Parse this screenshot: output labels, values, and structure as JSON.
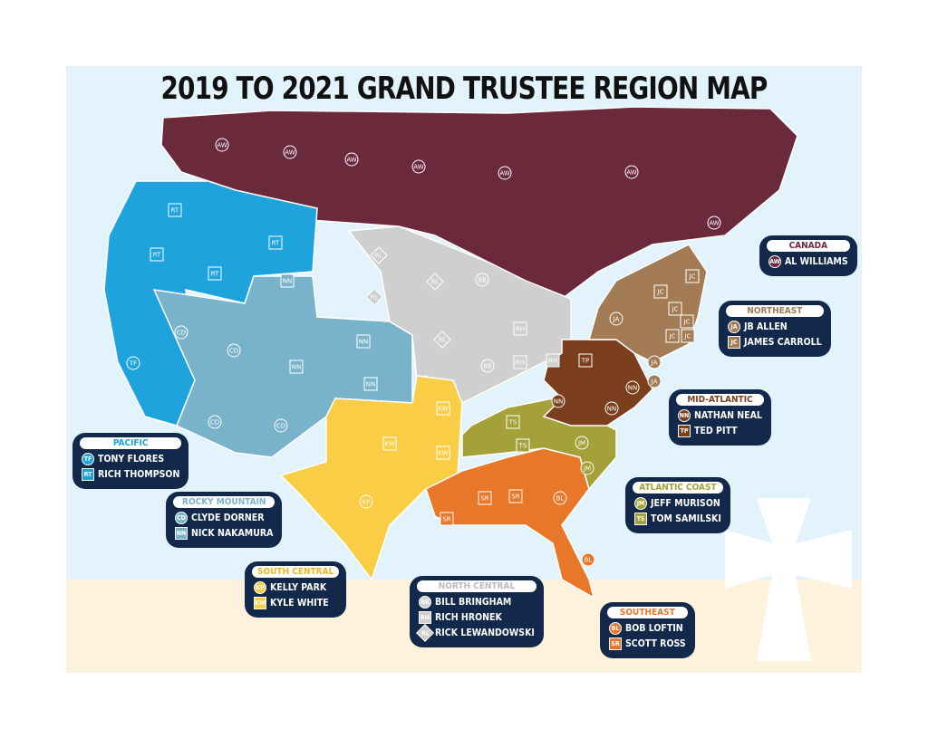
{
  "title": "2019 TO 2021 GRAND TRUSTEE REGION MAP",
  "colors": {
    "canada": "#6b2a3c",
    "northeast": "#a37c55",
    "mid_atlantic": "#7b3f1d",
    "atlantic_coast": "#a5a13a",
    "southeast": "#e8772a",
    "south_central": "#f9cd45",
    "north_central": "#cfcfcf",
    "rocky_mountain": "#79b3cb",
    "pacific": "#1fa3dd",
    "legend_bg": "#13294b",
    "ocean": "#e3f3fb",
    "land_bg": "#fdf3dc"
  },
  "legends": {
    "canada": {
      "title": "CANADA",
      "members": [
        {
          "code": "AW",
          "name": "AL WILLIAMS",
          "shape": "circle"
        }
      ]
    },
    "northeast": {
      "title": "NORTHEAST",
      "members": [
        {
          "code": "JA",
          "name": "JB ALLEN",
          "shape": "circle"
        },
        {
          "code": "JC",
          "name": "JAMES CARROLL",
          "shape": "square"
        }
      ]
    },
    "mid_atlantic": {
      "title": "MID-ATLANTIC",
      "members": [
        {
          "code": "NN",
          "name": "NATHAN NEAL",
          "shape": "circle"
        },
        {
          "code": "TP",
          "name": "TED PITT",
          "shape": "square"
        }
      ]
    },
    "atlantic_coast": {
      "title": "ATLANTIC COAST",
      "members": [
        {
          "code": "JM",
          "name": "JEFF MURISON",
          "shape": "circle"
        },
        {
          "code": "TS",
          "name": "TOM SAMILSKI",
          "shape": "square"
        }
      ]
    },
    "southeast": {
      "title": "SOUTHEAST",
      "members": [
        {
          "code": "BL",
          "name": "BOB LOFTIN",
          "shape": "circle"
        },
        {
          "code": "SR",
          "name": "SCOTT ROSS",
          "shape": "square"
        }
      ]
    },
    "north_central": {
      "title": "NORTH CENTRAL",
      "members": [
        {
          "code": "BB",
          "name": "BILL BRINGHAM",
          "shape": "circle"
        },
        {
          "code": "RH",
          "name": "RICH HRONEK",
          "shape": "square"
        },
        {
          "code": "RL",
          "name": "RICK LEWANDOWSKI",
          "shape": "diamond"
        }
      ]
    },
    "south_central": {
      "title": "SOUTH CENTRAL",
      "members": [
        {
          "code": "KP",
          "name": "KELLY PARK",
          "shape": "circle"
        },
        {
          "code": "KW",
          "name": "KYLE WHITE",
          "shape": "square"
        }
      ]
    },
    "rocky_mountain": {
      "title": "ROCKY MOUNTAIN",
      "members": [
        {
          "code": "CD",
          "name": "CLYDE DORNER",
          "shape": "circle"
        },
        {
          "code": "NN",
          "name": "NICK NAKAMURA",
          "shape": "square"
        }
      ]
    },
    "pacific": {
      "title": "PACIFIC",
      "members": [
        {
          "code": "TF",
          "name": "TONY FLORES",
          "shape": "circle"
        },
        {
          "code": "RT",
          "name": "RICH THOMPSON",
          "shape": "square"
        }
      ]
    }
  }
}
